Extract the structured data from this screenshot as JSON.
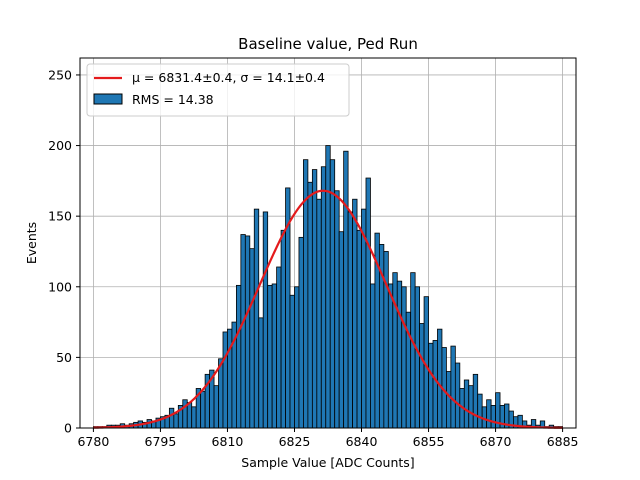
{
  "chart_data": {
    "type": "bar",
    "title": "Baseline value, Ped Run",
    "xlabel": "Sample Value [ADC Counts]",
    "ylabel": "Events",
    "xlim": [
      6777,
      6888
    ],
    "ylim": [
      0,
      262
    ],
    "xticks": [
      6780,
      6795,
      6810,
      6825,
      6840,
      6855,
      6870,
      6885
    ],
    "yticks": [
      0,
      50,
      100,
      150,
      200,
      250
    ],
    "grid": true,
    "legend_position": "top-left",
    "colors": {
      "bars": "#1f77b4",
      "bar_edge": "#000000",
      "fit": "#e41a1c",
      "grid": "#b0b0b0"
    },
    "histogram": {
      "name": "RMS = 14.38",
      "bin_start": 6780,
      "bin_width": 1,
      "counts": [
        1,
        1,
        1,
        2,
        2,
        2,
        3,
        2,
        3,
        4,
        5,
        4,
        6,
        5,
        7,
        8,
        9,
        14,
        10,
        16,
        20,
        18,
        15,
        28,
        26,
        38,
        41,
        30,
        49,
        68,
        70,
        75,
        101,
        137,
        136,
        127,
        155,
        78,
        153,
        101,
        102,
        114,
        140,
        170,
        94,
        100,
        135,
        190,
        174,
        183,
        162,
        185,
        200,
        190,
        168,
        139,
        196,
        153,
        162,
        140,
        155,
        177,
        102,
        138,
        130,
        125,
        102,
        110,
        104,
        100,
        82,
        110,
        100,
        74,
        93,
        60,
        62,
        70,
        57,
        40,
        58,
        46,
        28,
        34,
        30,
        38,
        24,
        15,
        20,
        16,
        25,
        16,
        17,
        12,
        8,
        9,
        5,
        2,
        6,
        2,
        5,
        1,
        2,
        1,
        1,
        0,
        0
      ]
    },
    "fit": {
      "name": "μ = 6831.4±0.4, σ = 14.1±0.4",
      "mu": 6831.4,
      "sigma": 14.1,
      "amplitude": 168,
      "x_range": [
        6780,
        6885
      ]
    }
  }
}
